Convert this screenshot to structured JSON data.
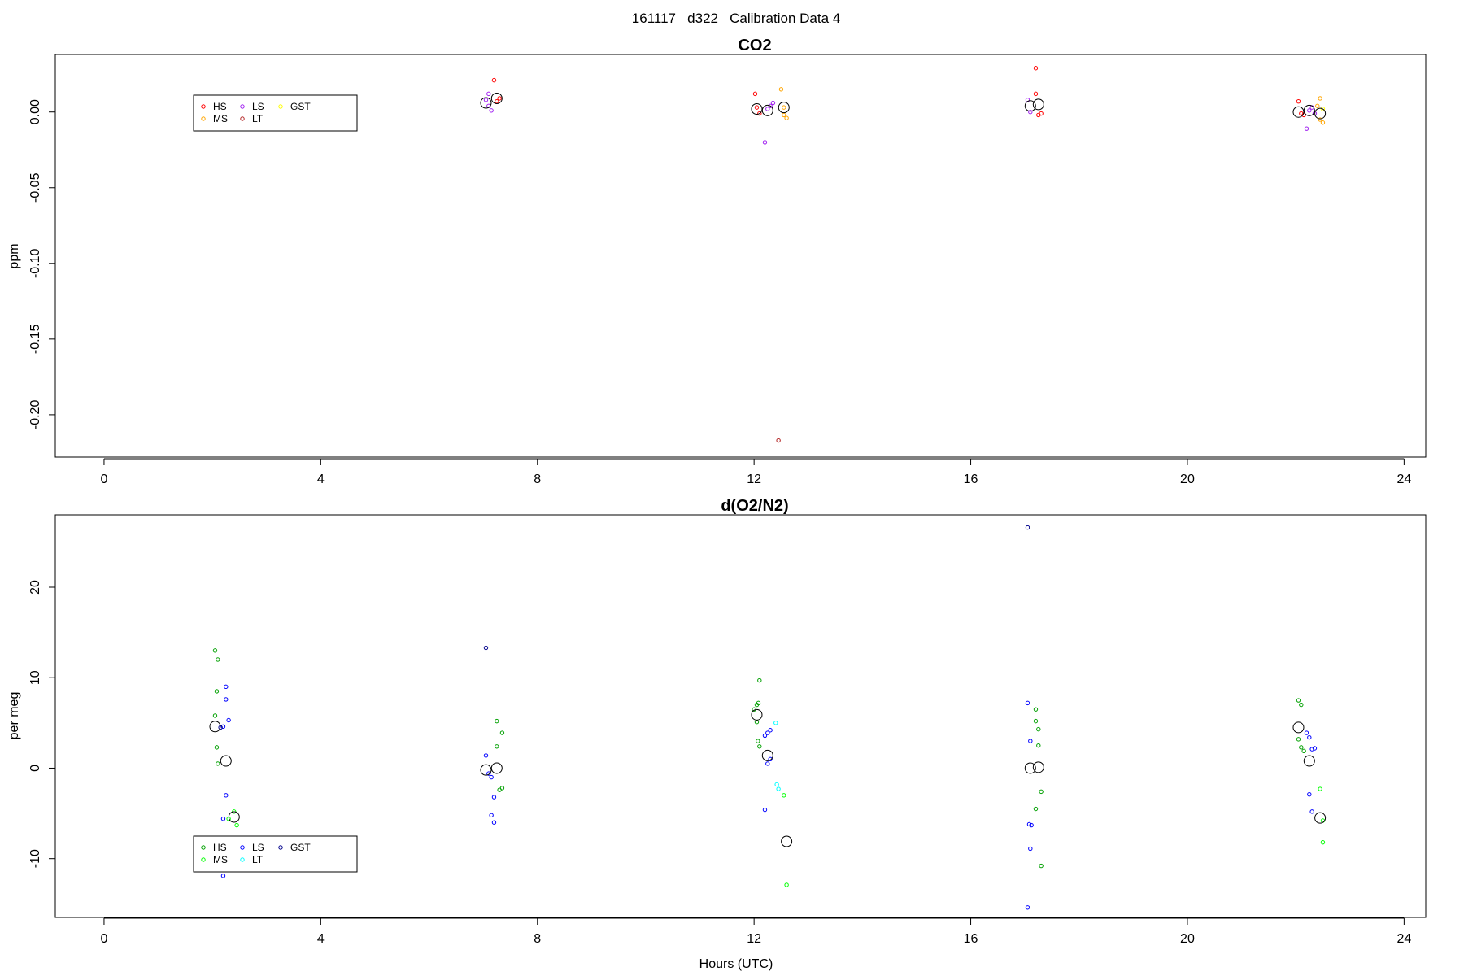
{
  "figure": {
    "suptitle": "161117   d322   Calibration Data 4",
    "xlabel": "Hours (UTC)"
  },
  "chart_data": [
    {
      "type": "scatter",
      "title": "CO2",
      "xlabel": "",
      "ylabel": "ppm",
      "xlim": [
        -0.9,
        24.4
      ],
      "ylim": [
        -0.228,
        0.038
      ],
      "xticks": [
        0,
        4,
        8,
        12,
        16,
        20,
        24
      ],
      "yticks": [
        0.0,
        -0.05,
        -0.1,
        -0.15,
        -0.2
      ],
      "ytick_labels": [
        "0.00",
        "-0.05",
        "-0.10",
        "-0.15",
        "-0.20"
      ],
      "grid": false,
      "legend": {
        "position": "top-left",
        "entries": [
          {
            "name": "HS",
            "color": "#ff0000"
          },
          {
            "name": "MS",
            "color": "#ffa500"
          },
          {
            "name": "LS",
            "color": "#a020f0"
          },
          {
            "name": "LT",
            "color": "#b22222"
          },
          {
            "name": "GST",
            "color": "#ffff00"
          }
        ]
      },
      "series": [
        {
          "name": "HS",
          "color": "#ff0000",
          "points": [
            [
              7.25,
              0.007
            ],
            [
              7.2,
              0.021
            ],
            [
              7.3,
              0.009
            ],
            [
              12.05,
              0.003
            ],
            [
              12.1,
              -0.001
            ],
            [
              12.02,
              0.012
            ],
            [
              17.2,
              0.029
            ],
            [
              17.2,
              0.012
            ],
            [
              17.25,
              -0.002
            ],
            [
              17.3,
              -0.001
            ],
            [
              22.05,
              0.007
            ],
            [
              22.1,
              -0.001
            ],
            [
              22.15,
              -0.002
            ]
          ]
        },
        {
          "name": "MS",
          "color": "#ffa500",
          "points": [
            [
              12.5,
              0.015
            ],
            [
              12.55,
              0.003
            ],
            [
              12.55,
              -0.002
            ],
            [
              12.6,
              -0.004
            ],
            [
              22.45,
              0.009
            ],
            [
              22.4,
              0.004
            ],
            [
              22.45,
              -0.005
            ],
            [
              22.5,
              -0.007
            ]
          ]
        },
        {
          "name": "LS",
          "color": "#a020f0",
          "points": [
            [
              7.05,
              0.008
            ],
            [
              7.1,
              0.004
            ],
            [
              7.15,
              0.001
            ],
            [
              7.1,
              0.012
            ],
            [
              12.2,
              -0.02
            ],
            [
              12.25,
              0.002
            ],
            [
              12.3,
              0.004
            ],
            [
              12.35,
              0.006
            ],
            [
              17.05,
              0.008
            ],
            [
              17.1,
              0.0
            ],
            [
              22.2,
              -0.011
            ],
            [
              22.25,
              0.001
            ],
            [
              22.3,
              0.003
            ],
            [
              22.35,
              -0.001
            ]
          ]
        },
        {
          "name": "LT",
          "color": "#b22222",
          "points": [
            [
              12.45,
              -0.217
            ]
          ]
        },
        {
          "name": "GST",
          "color": "#ffff00",
          "points": [
            [
              22.5,
              0.002
            ]
          ]
        }
      ],
      "means": [
        [
          7.05,
          0.006
        ],
        [
          7.25,
          0.009
        ],
        [
          12.05,
          0.002
        ],
        [
          12.25,
          0.001
        ],
        [
          12.55,
          0.003
        ],
        [
          17.1,
          0.004
        ],
        [
          17.25,
          0.005
        ],
        [
          22.05,
          0.0
        ],
        [
          22.25,
          0.001
        ],
        [
          22.45,
          -0.001
        ]
      ]
    },
    {
      "type": "scatter",
      "title": "d(O2/N2)",
      "xlabel": "Hours (UTC)",
      "ylabel": "per meg",
      "xlim": [
        -0.9,
        24.4
      ],
      "ylim": [
        -16.5,
        28.0
      ],
      "xticks": [
        0,
        4,
        8,
        12,
        16,
        20,
        24
      ],
      "yticks": [
        -10,
        0,
        10,
        20
      ],
      "ytick_labels": [
        "-10",
        "0",
        "10",
        "20"
      ],
      "grid": false,
      "legend": {
        "position": "bottom-left",
        "entries": [
          {
            "name": "HS",
            "color": "#00a000"
          },
          {
            "name": "MS",
            "color": "#00ff00"
          },
          {
            "name": "LS",
            "color": "#0000ff"
          },
          {
            "name": "LT",
            "color": "#00ffff"
          },
          {
            "name": "GST",
            "color": "#00008b"
          }
        ]
      },
      "series": [
        {
          "name": "HS",
          "color": "#00a000",
          "points": [
            [
              2.05,
              13.0
            ],
            [
              2.1,
              12.0
            ],
            [
              2.08,
              8.5
            ],
            [
              2.05,
              5.8
            ],
            [
              2.08,
              2.3
            ],
            [
              2.1,
              0.5
            ],
            [
              7.25,
              5.2
            ],
            [
              7.35,
              3.9
            ],
            [
              7.25,
              2.4
            ],
            [
              7.3,
              -2.4
            ],
            [
              7.35,
              -2.2
            ],
            [
              12.1,
              9.7
            ],
            [
              12.05,
              7.0
            ],
            [
              12.08,
              7.2
            ],
            [
              12.0,
              6.5
            ],
            [
              12.05,
              5.1
            ],
            [
              12.07,
              3.0
            ],
            [
              12.1,
              2.4
            ],
            [
              17.2,
              6.5
            ],
            [
              17.2,
              5.2
            ],
            [
              17.25,
              4.3
            ],
            [
              17.25,
              2.5
            ],
            [
              17.3,
              -2.6
            ],
            [
              17.2,
              -4.5
            ],
            [
              17.3,
              -10.8
            ],
            [
              22.05,
              7.5
            ],
            [
              22.1,
              7.0
            ],
            [
              22.05,
              3.2
            ],
            [
              22.1,
              2.3
            ],
            [
              22.15,
              1.9
            ]
          ]
        },
        {
          "name": "MS",
          "color": "#00ff00",
          "points": [
            [
              2.4,
              -4.8
            ],
            [
              2.45,
              -6.3
            ],
            [
              2.3,
              -5.6
            ],
            [
              12.55,
              -3.0
            ],
            [
              12.6,
              -12.9
            ],
            [
              22.45,
              -2.3
            ],
            [
              22.5,
              -5.8
            ],
            [
              22.5,
              -8.2
            ]
          ]
        },
        {
          "name": "LS",
          "color": "#0000ff",
          "points": [
            [
              2.25,
              9.0
            ],
            [
              2.25,
              7.6
            ],
            [
              2.3,
              5.3
            ],
            [
              2.2,
              4.6
            ],
            [
              2.25,
              -3.0
            ],
            [
              2.2,
              -5.6
            ],
            [
              2.2,
              -11.9
            ],
            [
              7.05,
              1.4
            ],
            [
              7.1,
              -0.6
            ],
            [
              7.15,
              -1.0
            ],
            [
              7.2,
              -3.2
            ],
            [
              7.15,
              -5.2
            ],
            [
              7.2,
              -6.0
            ],
            [
              12.2,
              3.6
            ],
            [
              12.25,
              3.9
            ],
            [
              12.3,
              4.2
            ],
            [
              12.25,
              0.5
            ],
            [
              12.3,
              1.0
            ],
            [
              12.2,
              -4.6
            ],
            [
              17.05,
              7.2
            ],
            [
              17.1,
              3.0
            ],
            [
              17.08,
              -6.2
            ],
            [
              17.12,
              -6.3
            ],
            [
              17.1,
              -8.9
            ],
            [
              17.05,
              -15.4
            ],
            [
              22.2,
              3.9
            ],
            [
              22.25,
              3.4
            ],
            [
              22.3,
              2.1
            ],
            [
              22.35,
              2.2
            ],
            [
              22.25,
              -2.9
            ],
            [
              22.3,
              -4.8
            ]
          ]
        },
        {
          "name": "LT",
          "color": "#00ffff",
          "points": [
            [
              12.4,
              5.0
            ],
            [
              12.42,
              -1.8
            ],
            [
              12.45,
              -2.3
            ]
          ]
        },
        {
          "name": "GST",
          "color": "#00008b",
          "points": [
            [
              7.05,
              13.3
            ],
            [
              17.05,
              26.6
            ],
            [
              2.15,
              4.5
            ]
          ]
        }
      ],
      "means": [
        [
          2.05,
          4.6
        ],
        [
          2.25,
          0.8
        ],
        [
          2.4,
          -5.4
        ],
        [
          7.05,
          -0.2
        ],
        [
          7.25,
          0.0
        ],
        [
          12.05,
          5.9
        ],
        [
          12.25,
          1.4
        ],
        [
          12.6,
          -8.1
        ],
        [
          17.1,
          0.0
        ],
        [
          17.25,
          0.1
        ],
        [
          22.05,
          4.5
        ],
        [
          22.25,
          0.8
        ],
        [
          22.45,
          -5.5
        ]
      ]
    }
  ]
}
